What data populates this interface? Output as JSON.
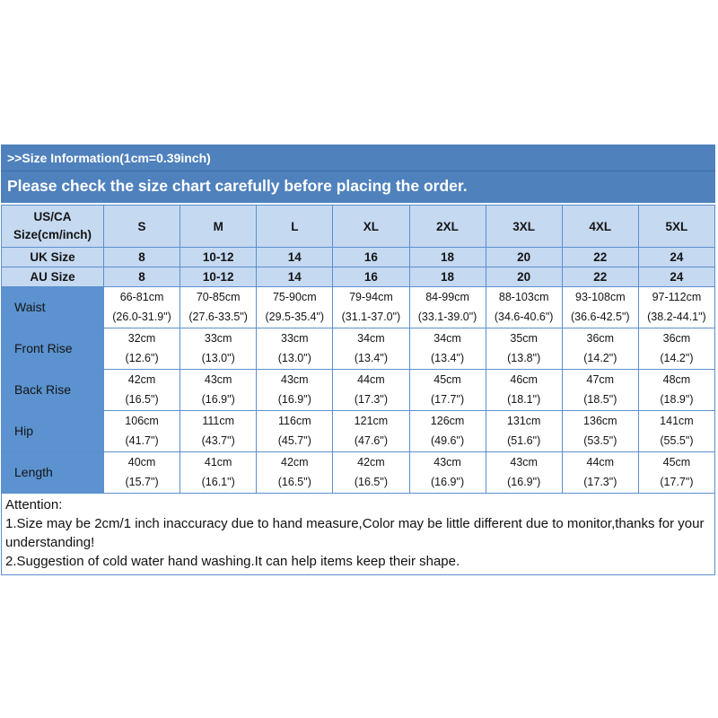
{
  "banner": {
    "line1": ">>Size Information(1cm=0.39inch)",
    "line2": "Please check the size chart carefully before placing the order."
  },
  "table": {
    "corner_header": "US/CA\nSize(cm/inch)",
    "size_columns": [
      "S",
      "M",
      "L",
      "XL",
      "2XL",
      "3XL",
      "4XL",
      "5XL"
    ],
    "conversion_rows": [
      {
        "label": "UK Size",
        "values": [
          "8",
          "10-12",
          "14",
          "16",
          "18",
          "20",
          "22",
          "24"
        ]
      },
      {
        "label": "AU Size",
        "values": [
          "8",
          "10-12",
          "14",
          "16",
          "18",
          "20",
          "22",
          "24"
        ]
      }
    ],
    "measurement_rows": [
      {
        "label": "Waist",
        "cm": [
          "66-81cm",
          "70-85cm",
          "75-90cm",
          "79-94cm",
          "84-99cm",
          "88-103cm",
          "93-108cm",
          "97-112cm"
        ],
        "inch": [
          "(26.0-31.9\")",
          "(27.6-33.5\")",
          "(29.5-35.4\")",
          "(31.1-37.0\")",
          "(33.1-39.0\")",
          "(34.6-40.6\")",
          "(36.6-42.5\")",
          "(38.2-44.1\")"
        ]
      },
      {
        "label": "Front Rise",
        "cm": [
          "32cm",
          "33cm",
          "33cm",
          "34cm",
          "34cm",
          "35cm",
          "36cm",
          "36cm"
        ],
        "inch": [
          "(12.6\")",
          "(13.0\")",
          "(13.0\")",
          "(13.4\")",
          "(13.4\")",
          "(13.8\")",
          "(14.2\")",
          "(14.2\")"
        ]
      },
      {
        "label": "Back Rise",
        "cm": [
          "42cm",
          "43cm",
          "43cm",
          "44cm",
          "45cm",
          "46cm",
          "47cm",
          "48cm"
        ],
        "inch": [
          "(16.5\")",
          "(16.9\")",
          "(16.9\")",
          "(17.3\")",
          "(17.7\")",
          "(18.1\")",
          "(18.5\")",
          "(18.9\")"
        ]
      },
      {
        "label": "Hip",
        "cm": [
          "106cm",
          "111cm",
          "116cm",
          "121cm",
          "126cm",
          "131cm",
          "136cm",
          "141cm"
        ],
        "inch": [
          "(41.7\")",
          "(43.7\")",
          "(45.7\")",
          "(47.6\")",
          "(49.6\")",
          "(51.6\")",
          "(53.5\")",
          "(55.5\")"
        ]
      },
      {
        "label": "Length",
        "cm": [
          "40cm",
          "41cm",
          "42cm",
          "42cm",
          "43cm",
          "43cm",
          "44cm",
          "45cm"
        ],
        "inch": [
          "(15.7\")",
          "(16.1\")",
          "(16.5\")",
          "(16.5\")",
          "(16.9\")",
          "(16.9\")",
          "(17.3\")",
          "(17.7\")"
        ]
      }
    ]
  },
  "attention": {
    "title": "Attention:",
    "notes": [
      "1.Size may be 2cm/1 inch inaccuracy due to hand measure,Color may be little different due to monitor,thanks for your understanding!",
      "2.Suggestion of cold water hand washing.It can help items keep their shape."
    ]
  },
  "colors": {
    "banner_blue": "#4f81bd",
    "light_blue_cell": "#c5d9f1",
    "label_blue_cell": "#5b92cf",
    "border_blue": "#5b8fce",
    "banner_text": "#ffffff",
    "body_text": "#141414"
  }
}
